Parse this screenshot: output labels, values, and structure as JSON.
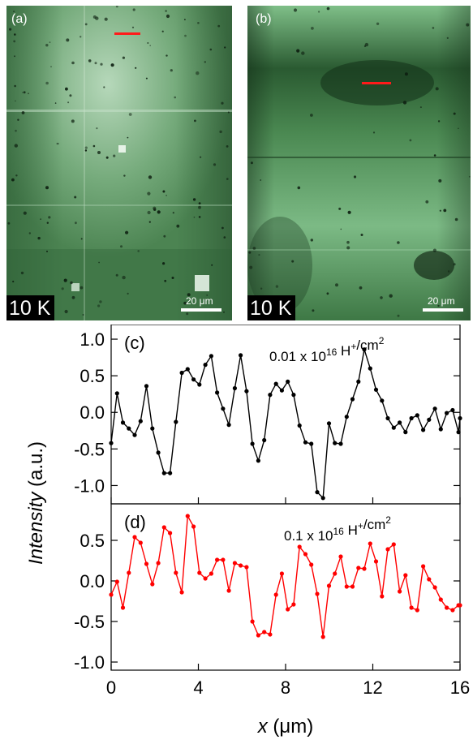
{
  "images": [
    {
      "panel": "(a)",
      "temp": "10 K",
      "scale": "20 μm",
      "colors": {
        "base": "#4f8a55",
        "light": "#93c49a",
        "dark": "#1d3a22"
      }
    },
    {
      "panel": "(b)",
      "temp": "10 K",
      "scale": "20 μm",
      "colors": {
        "base": "#4a8650",
        "light": "#8cc796",
        "dark": "#112a16"
      }
    }
  ],
  "chart_data": [
    {
      "type": "line",
      "panel": "(c)",
      "annotation": {
        "prefix": "0.01 x 10",
        "exp": "16",
        "suffix": " H",
        "ion": "+",
        "unit": "/cm",
        "unit_exp": "2"
      },
      "color": "#000000",
      "ylim": [
        -1.25,
        1.2
      ],
      "yticks": [
        "1.0",
        "0.5",
        "0.0",
        "-0.5",
        "-1.0"
      ],
      "ytick_values": [
        1.0,
        0.5,
        0.0,
        -0.5,
        -1.0
      ],
      "x": [
        0.0,
        0.27,
        0.54,
        0.81,
        1.08,
        1.35,
        1.62,
        1.89,
        2.16,
        2.43,
        2.7,
        2.97,
        3.24,
        3.51,
        3.78,
        4.05,
        4.32,
        4.59,
        4.86,
        5.13,
        5.4,
        5.67,
        5.94,
        6.21,
        6.48,
        6.75,
        7.02,
        7.29,
        7.56,
        7.83,
        8.1,
        8.37,
        8.64,
        8.91,
        9.18,
        9.45,
        9.72,
        9.99,
        10.26,
        10.53,
        10.8,
        11.07,
        11.34,
        11.61,
        11.88,
        12.15,
        12.42,
        12.69,
        12.96,
        13.23,
        13.5,
        13.77,
        14.04,
        14.31,
        14.58,
        14.85,
        15.12,
        15.39,
        15.66,
        15.93,
        16.0
      ],
      "y": [
        -0.42,
        0.26,
        -0.14,
        -0.22,
        -0.31,
        -0.12,
        0.36,
        -0.22,
        -0.55,
        -0.83,
        -0.83,
        -0.13,
        0.54,
        0.59,
        0.45,
        0.38,
        0.65,
        0.77,
        0.27,
        0.05,
        -0.17,
        0.33,
        0.78,
        0.29,
        -0.43,
        -0.66,
        -0.38,
        0.24,
        0.39,
        0.3,
        0.42,
        0.24,
        -0.18,
        -0.41,
        -0.43,
        -1.09,
        -1.17,
        -0.15,
        -0.42,
        -0.43,
        -0.06,
        0.18,
        0.42,
        0.86,
        0.6,
        0.31,
        0.16,
        -0.08,
        -0.21,
        -0.14,
        -0.27,
        -0.08,
        -0.04,
        -0.24,
        -0.1,
        0.05,
        -0.23,
        -0.01,
        0.03,
        -0.27,
        -0.08
      ]
    },
    {
      "type": "line",
      "panel": "(d)",
      "annotation": {
        "prefix": "0.1 x 10",
        "exp": "16",
        "suffix": " H",
        "ion": "+",
        "unit": "/cm",
        "unit_exp": "2"
      },
      "color": "#ff0000",
      "ylim": [
        -1.1,
        0.95
      ],
      "yticks": [
        "0.5",
        "0.0",
        "-0.5",
        "-1.0"
      ],
      "ytick_values": [
        0.5,
        0.0,
        -0.5,
        -1.0
      ],
      "x": [
        0.0,
        0.27,
        0.54,
        0.81,
        1.08,
        1.35,
        1.62,
        1.89,
        2.16,
        2.43,
        2.7,
        2.97,
        3.24,
        3.51,
        3.78,
        4.05,
        4.32,
        4.59,
        4.86,
        5.13,
        5.4,
        5.67,
        5.94,
        6.21,
        6.48,
        6.75,
        7.02,
        7.29,
        7.56,
        7.83,
        8.1,
        8.37,
        8.64,
        8.91,
        9.18,
        9.45,
        9.72,
        9.99,
        10.26,
        10.53,
        10.8,
        11.07,
        11.34,
        11.61,
        11.88,
        12.15,
        12.42,
        12.69,
        12.96,
        13.23,
        13.5,
        13.77,
        14.04,
        14.31,
        14.58,
        14.85,
        15.12,
        15.39,
        15.66,
        15.93,
        16.0
      ],
      "y": [
        -0.17,
        -0.01,
        -0.33,
        0.1,
        0.54,
        0.47,
        0.21,
        -0.04,
        0.22,
        0.66,
        0.59,
        0.1,
        -0.14,
        0.8,
        0.67,
        0.1,
        0.03,
        0.09,
        0.26,
        0.26,
        -0.12,
        0.22,
        0.19,
        0.17,
        -0.5,
        -0.67,
        -0.63,
        -0.66,
        -0.17,
        0.09,
        -0.35,
        -0.29,
        0.42,
        0.33,
        0.2,
        -0.16,
        -0.69,
        -0.06,
        0.09,
        0.3,
        -0.07,
        -0.07,
        0.16,
        0.15,
        0.46,
        0.24,
        -0.19,
        0.39,
        0.45,
        -0.13,
        0.07,
        -0.33,
        -0.36,
        0.18,
        0.02,
        -0.08,
        -0.23,
        -0.33,
        -0.36,
        -0.3,
        -0.3
      ]
    }
  ],
  "x_axis": {
    "label_var": "x",
    "label_unit": " (μm)",
    "xlim": [
      0,
      16
    ],
    "ticks": [
      "0",
      "4",
      "8",
      "12",
      "16"
    ],
    "tick_values": [
      0,
      4,
      8,
      12,
      16
    ]
  },
  "y_axis": {
    "label_var": "Intensity",
    "label_unit": " (a.u.)"
  }
}
